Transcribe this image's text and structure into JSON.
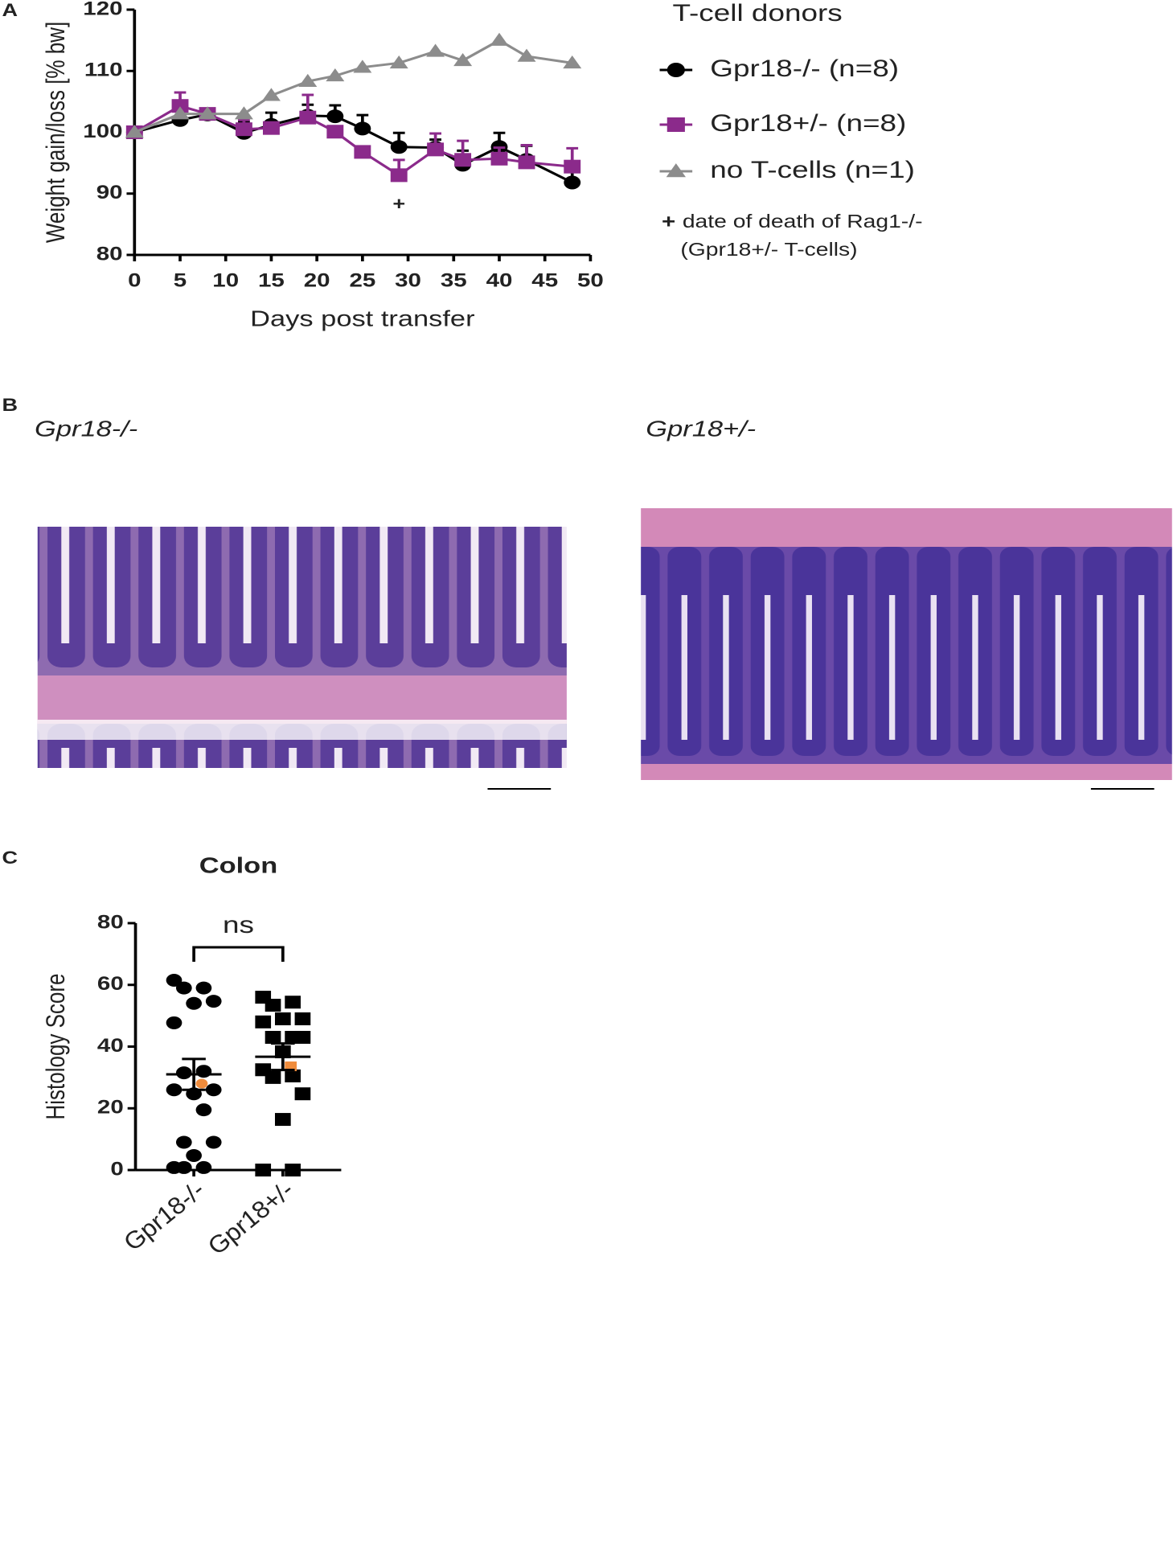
{
  "chart_data": [
    {
      "type": "line",
      "panel_label": "A",
      "xlabel": "Days  post transfer",
      "ylabel": "Weight gain/loss [% bw]",
      "x": [
        0,
        5,
        8,
        12,
        15,
        19,
        22,
        25,
        29,
        33,
        36,
        40,
        43,
        48
      ],
      "xlim": [
        0,
        50
      ],
      "xticks": [
        0,
        5,
        10,
        15,
        20,
        25,
        30,
        35,
        40,
        45,
        50
      ],
      "ylim": [
        80,
        120
      ],
      "yticks": [
        80,
        90,
        100,
        110,
        120
      ],
      "legend_title": "T-cell donors",
      "series": [
        {
          "name": "Gpr18-/- (n=8)",
          "color": "#000000",
          "marker": "circle",
          "values": [
            100,
            102,
            102.9,
            99.9,
            101.2,
            102.7,
            102.6,
            100.6,
            97.6,
            97.5,
            94.7,
            97.6,
            95.5,
            91.8
          ],
          "errors": [
            0.3,
            0.5,
            0.5,
            1.8,
            2.0,
            1.8,
            1.8,
            2.2,
            2.3,
            1.3,
            2.3,
            2.3,
            2.3,
            2.8
          ]
        },
        {
          "name": "Gpr18+/- (n=8)",
          "color": "#8b2a8b",
          "marker": "square",
          "values": [
            100,
            104.3,
            103,
            100.5,
            100.7,
            102.4,
            100.1,
            96.8,
            93,
            97.2,
            95.5,
            95.7,
            95.1,
            94.4
          ],
          "errors": [
            0.3,
            2.2,
            0.5,
            1.5,
            0.5,
            3.7,
            0.5,
            0.5,
            2.5,
            2.6,
            3.1,
            1.8,
            2.8,
            3.0
          ]
        },
        {
          "name": "no T-cells (n=1)",
          "color": "#8c8c8c",
          "marker": "triangle",
          "values": [
            100,
            103,
            103,
            103,
            106,
            108.3,
            109.2,
            110.6,
            111.3,
            113.2,
            111.7,
            115,
            112.4,
            111.3
          ]
        }
      ],
      "annotations": [
        {
          "x": 29,
          "y": 88.1,
          "text": "+",
          "color": "#8b2a8b"
        }
      ],
      "note_symbol": "+",
      "note_lines": [
        "date of death of Rag1-/-",
        "(Gpr18+/- T-cells)"
      ]
    },
    {
      "type": "dot",
      "panel_label": "C",
      "title": "Colon",
      "ylabel": "Histology Score",
      "categories": [
        "Gpr18-/-",
        "Gpr18+/-"
      ],
      "ylim": [
        0,
        80
      ],
      "yticks": [
        0,
        20,
        40,
        60,
        80
      ],
      "annotation": "ns",
      "groups": [
        {
          "marker": "circle",
          "color": "#000000",
          "values": [
            61.5,
            59,
            59,
            54.7,
            54,
            47.7,
            32,
            31.5,
            26,
            24.7,
            26,
            19.5,
            9,
            9,
            4.7,
            0.8,
            0.8,
            0.8
          ],
          "highlight": [
            28
          ],
          "highlight_color": "#f08c3c",
          "mean": 31,
          "sem": 5
        },
        {
          "marker": "square",
          "color": "#000000",
          "values": [
            56,
            54.4,
            53.4,
            49,
            49,
            48,
            43,
            43,
            43,
            38.3,
            32.5,
            30.5,
            30,
            24.7,
            16.4,
            0,
            0
          ],
          "highlight": [
            33.6
          ],
          "highlight_color": "#f08c3c",
          "mean": 36.7,
          "sem": 4.3
        }
      ]
    }
  ],
  "panel_b": {
    "label": "B",
    "images": [
      {
        "label": "Gpr18-/-"
      },
      {
        "label": "Gpr18+/-"
      }
    ]
  }
}
